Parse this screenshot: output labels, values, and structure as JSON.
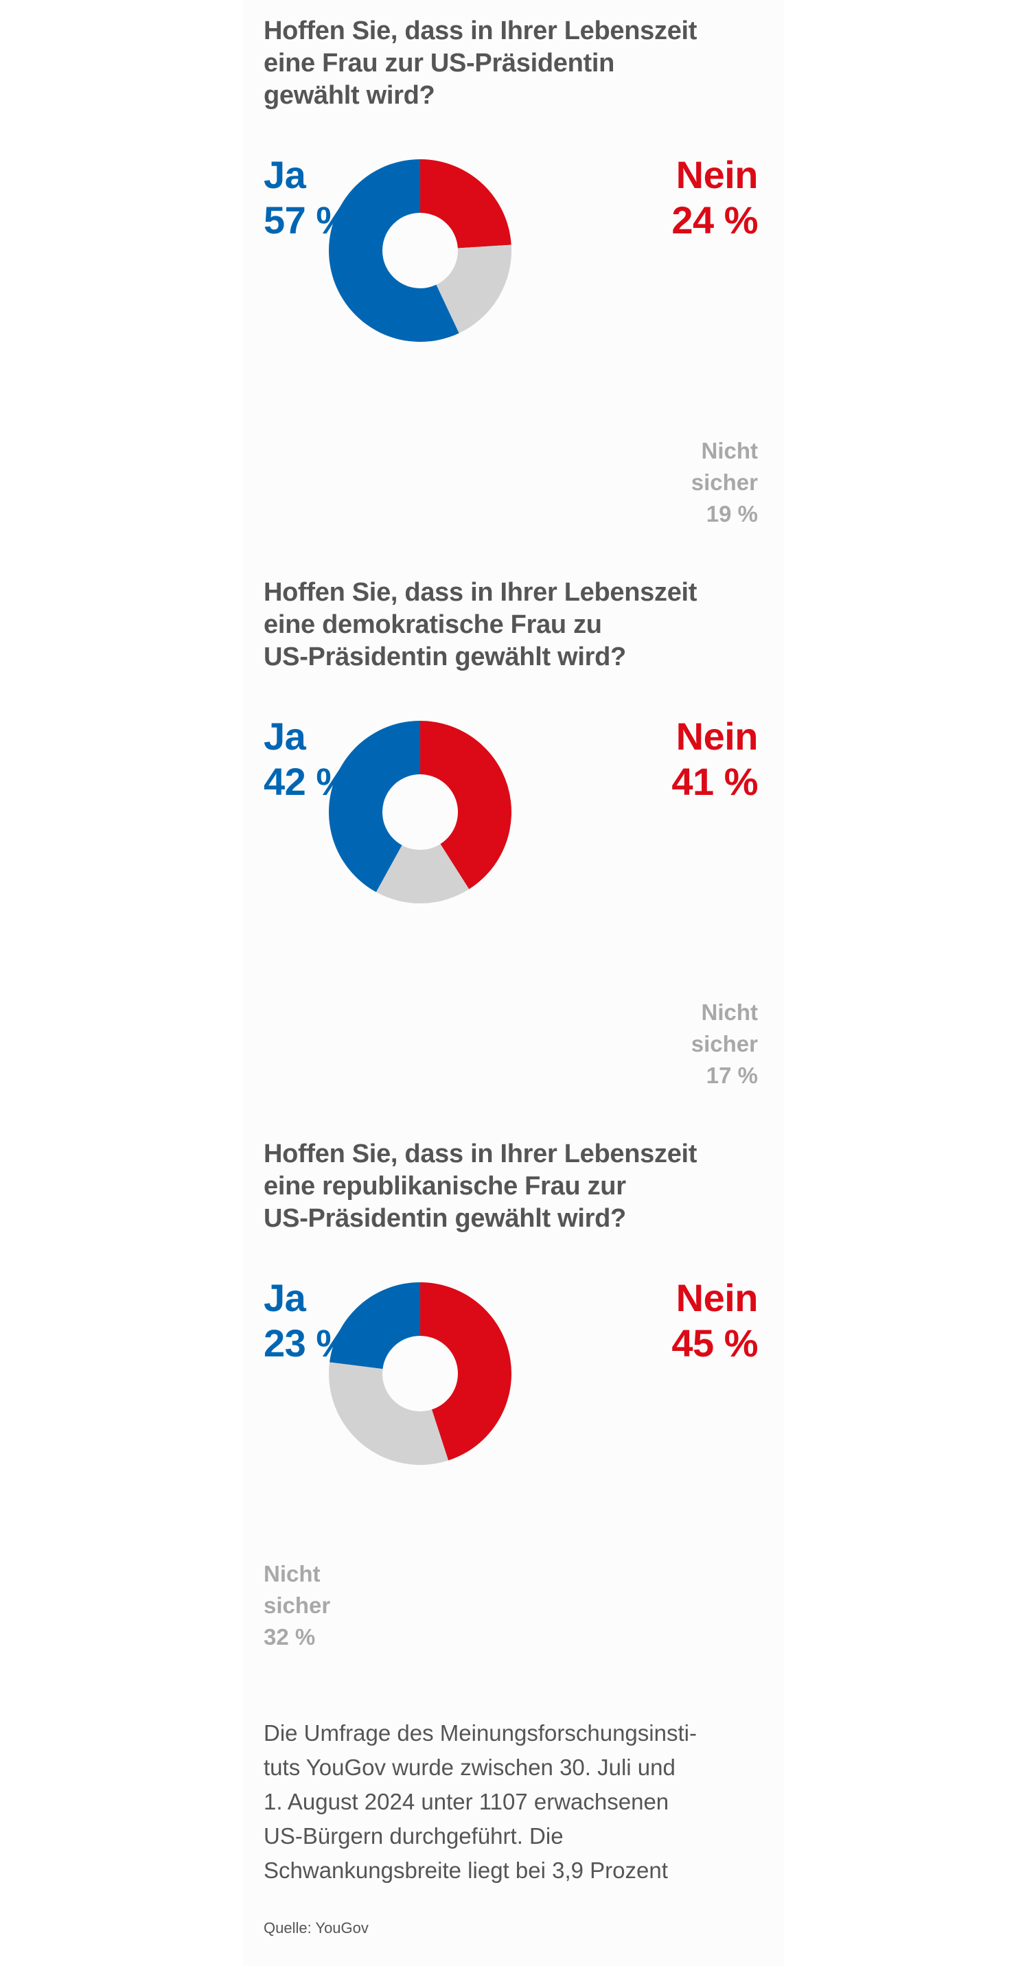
{
  "colors": {
    "ja": "#0066b3",
    "nein": "#db0a16",
    "nicht_sicher": "#d2d2d2",
    "title": "#555555"
  },
  "chart_data": [
    {
      "type": "pie",
      "title_lines": [
        "Hoffen Sie, dass in Ihrer Lebenszeit",
        "eine Frau zur US-Präsidentin",
        "gewählt wird?"
      ],
      "categories": [
        "Ja",
        "Nein",
        "Nicht sicher"
      ],
      "values": [
        57,
        24,
        19
      ],
      "labels": {
        "ja_name": "Ja",
        "ja_value": "57 %",
        "nein_name": "Nein",
        "nein_value": "24 %",
        "ns_line1": "Nicht",
        "ns_line2": "sicher",
        "ns_value": "19 %"
      }
    },
    {
      "type": "pie",
      "title_lines": [
        "Hoffen Sie, dass in Ihrer Lebenszeit",
        "eine demokratische Frau zu",
        "US-Präsidentin gewählt wird?"
      ],
      "categories": [
        "Ja",
        "Nein",
        "Nicht sicher"
      ],
      "values": [
        42,
        41,
        17
      ],
      "labels": {
        "ja_name": "Ja",
        "ja_value": "42 %",
        "nein_name": "Nein",
        "nein_value": "41 %",
        "ns_line1": "Nicht",
        "ns_line2": "sicher",
        "ns_value": "17 %"
      }
    },
    {
      "type": "pie",
      "title_lines": [
        "Hoffen Sie, dass in Ihrer Lebenszeit",
        "eine republikanische Frau zur",
        "US-Präsidentin gewählt wird?"
      ],
      "categories": [
        "Ja",
        "Nein",
        "Nicht sicher"
      ],
      "values": [
        23,
        45,
        32
      ],
      "labels": {
        "ja_name": "Ja",
        "ja_value": "23 %",
        "nein_name": "Nein",
        "nein_value": "45 %",
        "ns_line1": "Nicht",
        "ns_line2": "sicher",
        "ns_value": "32 %"
      }
    }
  ],
  "note_lines": [
    "Die Umfrage des Meinungsforschungsinsti-",
    "tuts YouGov wurde zwischen 30. Juli und",
    "1. August 2024 unter 1107 erwachsenen",
    "US-Bürgern durchgeführt. Die",
    "Schwankungsbreite liegt bei 3,9 Prozent"
  ],
  "source": "Quelle: YouGov"
}
